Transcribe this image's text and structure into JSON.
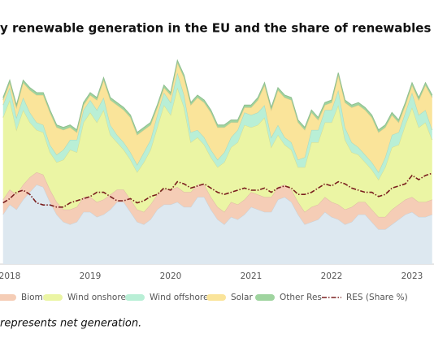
{
  "chart_data": {
    "type": "area",
    "title": "y renewable generation in the EU and the share of renewables in the",
    "note": "represents net generation.",
    "categories": [
      null,
      "2018",
      null,
      null,
      null,
      null,
      null,
      null,
      null,
      null,
      null,
      null,
      null,
      "2019",
      null,
      null,
      null,
      null,
      null,
      null,
      null,
      null,
      null,
      null,
      null,
      "2020",
      null,
      null,
      null,
      null,
      null,
      null,
      null,
      null,
      null,
      null,
      null,
      "2021",
      null,
      null,
      null,
      null,
      null,
      null,
      null,
      null,
      null,
      null,
      null,
      "2022",
      null,
      null,
      null,
      null,
      null,
      null,
      null,
      null,
      null,
      null,
      null,
      "2023",
      null,
      null,
      null
    ],
    "ylim": [
      0,
      85
    ],
    "y2lim": [
      0,
      100
    ],
    "series": [
      {
        "color": "#dde8f0",
        "values": [
          20,
          24,
          22,
          26,
          29,
          32,
          31,
          25,
          20,
          17,
          16,
          17,
          21,
          21,
          19,
          20,
          22,
          25,
          25,
          21,
          17,
          16,
          18,
          22,
          24,
          24,
          25,
          23,
          23,
          27,
          27,
          22,
          18,
          16,
          19,
          18,
          20,
          23,
          22,
          21,
          21,
          26,
          27,
          25,
          20,
          16,
          17,
          18,
          21,
          19,
          18,
          16,
          17,
          20,
          20,
          17,
          14,
          14,
          16,
          18,
          20,
          21,
          19,
          19,
          20
        ]
      },
      {
        "name": "Biomass",
        "color": "#f5cdb6",
        "values": [
          6,
          6,
          6,
          6,
          6,
          5,
          5,
          5,
          5,
          5,
          6,
          6,
          6,
          6,
          6,
          6,
          6,
          5,
          5,
          5,
          5,
          5,
          6,
          6,
          6,
          6,
          6,
          6,
          6,
          5,
          5,
          5,
          5,
          5,
          6,
          6,
          6,
          6,
          6,
          6,
          6,
          5,
          5,
          5,
          5,
          5,
          6,
          6,
          6,
          6,
          6,
          6,
          6,
          5,
          5,
          5,
          5,
          5,
          6,
          6,
          6,
          6,
          6,
          6,
          6
        ]
      },
      {
        "name": "Wind onshore",
        "color": "#ebf5a4",
        "values": [
          33,
          36,
          26,
          30,
          22,
          17,
          17,
          15,
          16,
          20,
          24,
          22,
          30,
          34,
          32,
          36,
          24,
          19,
          16,
          16,
          15,
          20,
          22,
          27,
          34,
          30,
          40,
          34,
          20,
          19,
          16,
          16,
          16,
          20,
          22,
          25,
          30,
          26,
          28,
          32,
          20,
          21,
          16,
          16,
          14,
          18,
          26,
          25,
          30,
          32,
          40,
          28,
          22,
          19,
          16,
          16,
          15,
          20,
          25,
          24,
          30,
          36,
          30,
          32,
          24
        ]
      },
      {
        "name": "Wind offshore",
        "color": "#b9efd6",
        "values": [
          5,
          5,
          5,
          5,
          4,
          3,
          3,
          3,
          3,
          4,
          4,
          5,
          5,
          5,
          5,
          5,
          4,
          3,
          3,
          3,
          3,
          4,
          4,
          5,
          5,
          5,
          6,
          5,
          4,
          3,
          3,
          3,
          3,
          4,
          4,
          5,
          5,
          5,
          5,
          5,
          4,
          4,
          3,
          3,
          3,
          4,
          5,
          5,
          5,
          5,
          6,
          5,
          4,
          3,
          3,
          3,
          3,
          4,
          5,
          5,
          5,
          6,
          5,
          5,
          4
        ]
      },
      {
        "name": "Solar",
        "color": "#fae49a",
        "values": [
          2,
          2,
          4,
          6,
          9,
          11,
          12,
          13,
          11,
          8,
          5,
          3,
          2,
          2,
          4,
          7,
          10,
          12,
          13,
          14,
          12,
          9,
          6,
          3,
          2,
          3,
          4,
          7,
          11,
          13,
          14,
          15,
          13,
          10,
          6,
          3,
          2,
          3,
          5,
          8,
          11,
          14,
          16,
          17,
          15,
          11,
          7,
          4,
          2,
          3,
          6,
          10,
          14,
          17,
          18,
          18,
          16,
          12,
          8,
          4,
          3,
          3,
          6,
          10,
          13
        ]
      },
      {
        "name": "Other Res",
        "color": "#9fd49f",
        "values": [
          1,
          1,
          1,
          1,
          1,
          1,
          1,
          1,
          1,
          1,
          1,
          1,
          1,
          1,
          1,
          1,
          1,
          1,
          1,
          1,
          1,
          1,
          1,
          1,
          1,
          1,
          1,
          1,
          1,
          1,
          1,
          1,
          1,
          1,
          1,
          1,
          1,
          1,
          1,
          1,
          1,
          1,
          1,
          1,
          1,
          1,
          1,
          1,
          1,
          1,
          1,
          1,
          1,
          1,
          1,
          1,
          1,
          1,
          1,
          1,
          1,
          1,
          1,
          1,
          1
        ]
      },
      {
        "name": "RES (Share %)",
        "color": "#7a1f1f",
        "axis": "y2",
        "values": [
          29,
          31,
          34,
          35,
          33,
          29,
          28,
          28,
          27,
          27,
          29,
          30,
          31,
          32,
          34,
          34,
          32,
          30,
          30,
          31,
          29,
          30,
          32,
          33,
          36,
          35,
          39,
          38,
          36,
          37,
          38,
          36,
          34,
          33,
          34,
          35,
          36,
          35,
          35,
          36,
          34,
          36,
          37,
          36,
          33,
          33,
          34,
          36,
          38,
          37,
          39,
          38,
          36,
          35,
          34,
          34,
          32,
          33,
          36,
          37,
          38,
          42,
          40,
          42,
          43
        ]
      }
    ]
  }
}
